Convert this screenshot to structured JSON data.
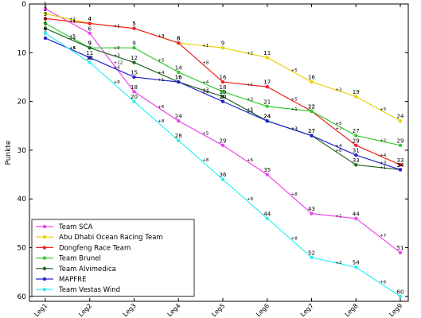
{
  "chart_data": {
    "type": "line",
    "title": "",
    "xlabel": "",
    "ylabel": "Punkte",
    "categories": [
      "Leg1",
      "Leg2",
      "Leg3",
      "Leg4",
      "Leg5",
      "Leg6",
      "Leg7",
      "Leg8",
      "Leg9"
    ],
    "ylim": [
      61,
      0
    ],
    "y_reversed": true,
    "yticks": [
      0,
      10,
      20,
      30,
      40,
      50,
      60
    ],
    "grid": false,
    "legend_position": "bottom-left",
    "series": [
      {
        "name": "Team SCA",
        "color": "#ee44ee",
        "values": [
          1,
          6,
          18,
          24,
          29,
          35,
          43,
          44,
          51
        ],
        "point_labels": [
          "1",
          "6",
          "18",
          "24",
          "29",
          "35",
          "43",
          "44",
          "51"
        ],
        "deltas": [
          "+5",
          "+12",
          "+6",
          "+5",
          "+6",
          "+8",
          "+1",
          "+7"
        ]
      },
      {
        "name": "Abu Dhabi Ocean Racing Team",
        "color": "#e8d000",
        "values": [
          2,
          4,
          5,
          8,
          9,
          11,
          16,
          19,
          24
        ],
        "point_labels": [
          "2",
          "4",
          "5",
          "8",
          "9",
          "11",
          "16",
          "19",
          "24"
        ],
        "deltas": [
          "+2",
          "+1",
          "+3",
          "+1",
          "+2",
          "+5",
          "+3",
          "+5"
        ]
      },
      {
        "name": "Dongfeng Race Team",
        "color": "#ee2222",
        "values": [
          3,
          4,
          5,
          8,
          16,
          17,
          22,
          29,
          33
        ],
        "point_labels": [
          "3",
          "4",
          "5",
          "8",
          "16",
          "17",
          "22",
          "29",
          "33"
        ],
        "deltas": [
          "+1",
          "+1",
          "+3",
          "+8",
          "+1",
          "+5",
          "+7",
          "+4"
        ]
      },
      {
        "name": "Team Brunel",
        "color": "#33cc33",
        "values": [
          4,
          9,
          9,
          14,
          18,
          21,
          22,
          27,
          29
        ],
        "point_labels": [
          "4",
          "9",
          "9",
          "14",
          "18",
          "21",
          "22",
          "27",
          "29"
        ],
        "deltas": [
          "+5",
          "+0",
          "+5",
          "+4",
          "+3",
          "+1",
          "+5",
          "+2"
        ]
      },
      {
        "name": "Team Alvimedica",
        "color": "#226622",
        "values": [
          5,
          9,
          12,
          16,
          19,
          24,
          27,
          33,
          34
        ],
        "point_labels": [
          "5",
          "9",
          "12",
          "16",
          "19",
          "24",
          "27",
          "33",
          "34"
        ],
        "deltas": [
          "+4",
          "+3",
          "+4",
          "+3",
          "+5",
          "+3",
          "+6",
          "+1"
        ]
      },
      {
        "name": "MAPFRE",
        "color": "#2222cc",
        "values": [
          7,
          11,
          15,
          16,
          20,
          24,
          27,
          31,
          34
        ],
        "point_labels": [
          "7",
          "11",
          "15",
          "16",
          "20",
          "24",
          "27",
          "31",
          "34"
        ],
        "deltas": [
          "+4",
          "+4",
          "+1",
          "+4",
          "+4",
          "+3",
          "+4",
          "+3"
        ]
      },
      {
        "name": "Team Vestas Wind",
        "color": "#33eeee",
        "values": [
          6,
          12,
          20,
          28,
          36,
          44,
          52,
          54,
          60
        ],
        "point_labels": [
          "6",
          "12",
          "20",
          "28",
          "36",
          "44",
          "52",
          "54",
          "60"
        ],
        "deltas": [
          "+6",
          "+8",
          "+8",
          "+8",
          "+8",
          "+8",
          "+2",
          "+6"
        ]
      }
    ]
  }
}
